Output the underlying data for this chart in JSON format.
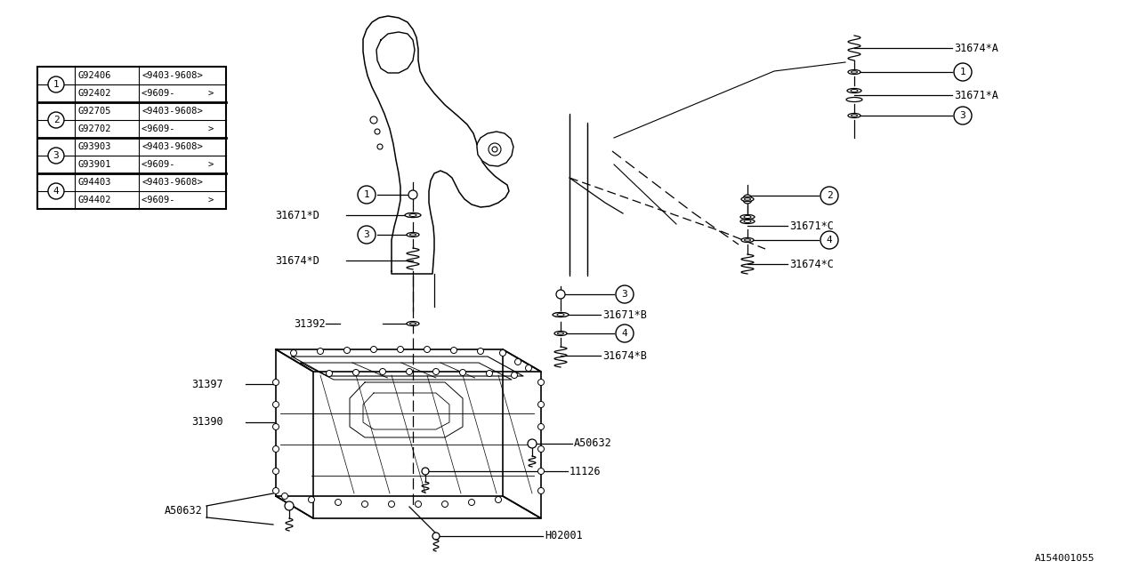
{
  "bg_color": "#ffffff",
  "line_color": "#000000",
  "font_family": "monospace",
  "footer_code": "A154001055",
  "legend_rows": [
    {
      "num": "1",
      "part1": "G92406",
      "date1": "<9403-9608>",
      "part2": "G92402",
      "date2": "<9609-      >"
    },
    {
      "num": "2",
      "part1": "G92705",
      "date1": "<9403-9608>",
      "part2": "G92702",
      "date2": "<9609-      >"
    },
    {
      "num": "3",
      "part1": "G93903",
      "date1": "<9403-9608>",
      "part2": "G93901",
      "date2": "<9609-      >"
    },
    {
      "num": "4",
      "part1": "G94403",
      "date1": "<9403-9608>",
      "part2": "G94402",
      "date2": "<9609-      >"
    }
  ]
}
